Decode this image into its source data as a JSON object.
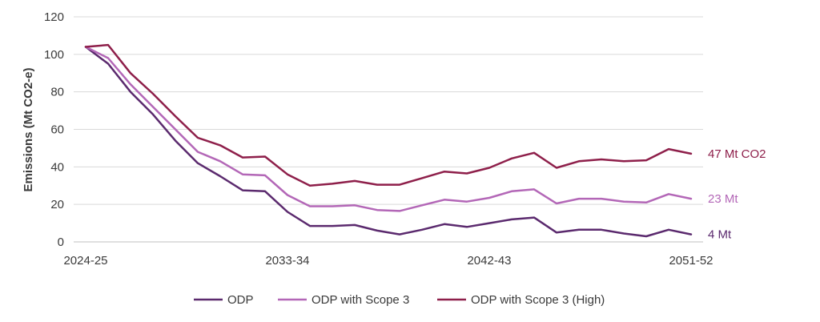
{
  "chart_data": {
    "type": "line",
    "title": "",
    "xlabel": "",
    "ylabel": "Emissions (Mt CO2-e)",
    "ylim": [
      0,
      120
    ],
    "yticks": [
      0,
      20,
      40,
      60,
      80,
      100,
      120
    ],
    "grid": true,
    "legend_position": "bottom",
    "x": [
      "2024-25",
      "2025-26",
      "2026-27",
      "2027-28",
      "2028-29",
      "2029-30",
      "2030-31",
      "2031-32",
      "2032-33",
      "2033-34",
      "2034-35",
      "2035-36",
      "2036-37",
      "2037-38",
      "2038-39",
      "2039-40",
      "2040-41",
      "2041-42",
      "2042-43",
      "2043-44",
      "2044-45",
      "2045-46",
      "2046-47",
      "2047-48",
      "2048-49",
      "2049-50",
      "2050-51",
      "2051-52"
    ],
    "xtick_labels": [
      "2024-25",
      "2033-34",
      "2042-43",
      "2051-52"
    ],
    "series": [
      {
        "name": "ODP",
        "color": "#5b2a6e",
        "end_label": "4 Mt",
        "values": [
          104,
          95,
          80,
          68,
          54,
          42,
          35,
          27.5,
          27,
          16,
          8.5,
          8.5,
          9,
          6,
          4,
          6.5,
          9.5,
          8,
          10,
          12,
          13,
          5,
          6.5,
          6.5,
          4.5,
          3,
          6.5,
          4
        ]
      },
      {
        "name": "ODP with Scope 3",
        "color": "#b367b7",
        "end_label": "23 Mt",
        "values": [
          104,
          98,
          84,
          72,
          60,
          48,
          43,
          36,
          35.5,
          25,
          19,
          19,
          19.5,
          17,
          16.5,
          19.5,
          22.5,
          21.5,
          23.5,
          27,
          28,
          20.5,
          23,
          23,
          21.5,
          21,
          25.5,
          23
        ]
      },
      {
        "name": "ODP with Scope 3 (High)",
        "color": "#8e1f4a",
        "end_label": "47 Mt CO2",
        "values": [
          104,
          105,
          90,
          79,
          67,
          55.5,
          51.5,
          45,
          45.5,
          36,
          30,
          31,
          32.5,
          30.5,
          30.5,
          34,
          37.5,
          36.5,
          39.5,
          44.5,
          47.5,
          39.5,
          43,
          44,
          43,
          43.5,
          49.5,
          47
        ]
      }
    ]
  }
}
